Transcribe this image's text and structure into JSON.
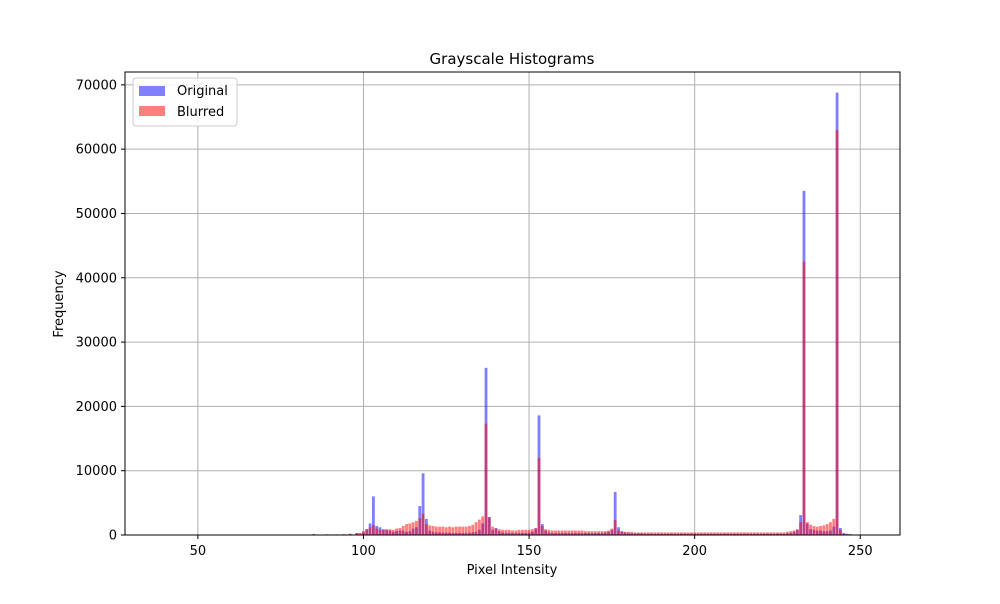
{
  "chart_data": {
    "type": "bar",
    "title": "Grayscale Histograms",
    "xlabel": "Pixel Intensity",
    "ylabel": "Frequency",
    "xlim": [
      28,
      262
    ],
    "ylim": [
      0,
      72000
    ],
    "xticks": [
      50,
      100,
      150,
      200,
      250
    ],
    "yticks": [
      0,
      10000,
      20000,
      30000,
      40000,
      50000,
      60000,
      70000
    ],
    "grid": true,
    "legend_position": "top-left",
    "colors": {
      "Original": "#7b7bf5",
      "Blurred": "#f37a7a",
      "overlap": "#b7407a"
    },
    "series": [
      {
        "name": "Original",
        "points": [
          [
            34,
            0
          ],
          [
            45,
            0
          ],
          [
            60,
            0
          ],
          [
            70,
            0
          ],
          [
            80,
            0
          ],
          [
            85,
            150
          ],
          [
            88,
            0
          ],
          [
            89,
            100
          ],
          [
            92,
            80
          ],
          [
            94,
            120
          ],
          [
            96,
            150
          ],
          [
            98,
            300
          ],
          [
            99,
            200
          ],
          [
            100,
            400
          ],
          [
            101,
            900
          ],
          [
            102,
            1800
          ],
          [
            103,
            6000
          ],
          [
            104,
            1400
          ],
          [
            105,
            1200
          ],
          [
            106,
            900
          ],
          [
            107,
            800
          ],
          [
            108,
            700
          ],
          [
            109,
            500
          ],
          [
            110,
            600
          ],
          [
            111,
            700
          ],
          [
            112,
            700
          ],
          [
            113,
            500
          ],
          [
            114,
            600
          ],
          [
            115,
            1000
          ],
          [
            116,
            1200
          ],
          [
            117,
            4500
          ],
          [
            118,
            9600
          ],
          [
            119,
            2500
          ],
          [
            120,
            700
          ],
          [
            121,
            500
          ],
          [
            122,
            400
          ],
          [
            123,
            400
          ],
          [
            124,
            350
          ],
          [
            125,
            350
          ],
          [
            126,
            350
          ],
          [
            127,
            300
          ],
          [
            128,
            300
          ],
          [
            129,
            300
          ],
          [
            130,
            300
          ],
          [
            131,
            300
          ],
          [
            132,
            350
          ],
          [
            133,
            400
          ],
          [
            134,
            500
          ],
          [
            135,
            800
          ],
          [
            136,
            1800
          ],
          [
            137,
            26000
          ],
          [
            138,
            2800
          ],
          [
            139,
            800
          ],
          [
            140,
            1100
          ],
          [
            141,
            600
          ],
          [
            142,
            400
          ],
          [
            143,
            350
          ],
          [
            144,
            350
          ],
          [
            145,
            300
          ],
          [
            146,
            300
          ],
          [
            147,
            300
          ],
          [
            148,
            300
          ],
          [
            149,
            300
          ],
          [
            150,
            350
          ],
          [
            151,
            500
          ],
          [
            152,
            1000
          ],
          [
            153,
            18600
          ],
          [
            154,
            1700
          ],
          [
            155,
            700
          ],
          [
            156,
            400
          ],
          [
            157,
            300
          ],
          [
            158,
            300
          ],
          [
            159,
            300
          ],
          [
            160,
            300
          ],
          [
            161,
            300
          ],
          [
            162,
            300
          ],
          [
            163,
            300
          ],
          [
            164,
            300
          ],
          [
            165,
            300
          ],
          [
            166,
            300
          ],
          [
            167,
            300
          ],
          [
            168,
            300
          ],
          [
            169,
            300
          ],
          [
            170,
            300
          ],
          [
            171,
            300
          ],
          [
            172,
            300
          ],
          [
            173,
            400
          ],
          [
            174,
            500
          ],
          [
            175,
            800
          ],
          [
            176,
            6700
          ],
          [
            177,
            1200
          ],
          [
            178,
            600
          ],
          [
            179,
            400
          ],
          [
            180,
            300
          ],
          [
            181,
            250
          ],
          [
            182,
            250
          ],
          [
            183,
            250
          ],
          [
            184,
            250
          ],
          [
            185,
            200
          ],
          [
            186,
            200
          ],
          [
            187,
            200
          ],
          [
            188,
            200
          ],
          [
            189,
            200
          ],
          [
            190,
            200
          ],
          [
            191,
            200
          ],
          [
            192,
            200
          ],
          [
            193,
            200
          ],
          [
            194,
            200
          ],
          [
            195,
            200
          ],
          [
            196,
            200
          ],
          [
            197,
            200
          ],
          [
            198,
            200
          ],
          [
            199,
            200
          ],
          [
            200,
            200
          ],
          [
            201,
            200
          ],
          [
            202,
            200
          ],
          [
            203,
            200
          ],
          [
            204,
            200
          ],
          [
            205,
            200
          ],
          [
            206,
            200
          ],
          [
            207,
            200
          ],
          [
            208,
            200
          ],
          [
            209,
            200
          ],
          [
            210,
            200
          ],
          [
            211,
            200
          ],
          [
            212,
            200
          ],
          [
            213,
            200
          ],
          [
            214,
            200
          ],
          [
            215,
            200
          ],
          [
            216,
            200
          ],
          [
            217,
            200
          ],
          [
            218,
            200
          ],
          [
            219,
            200
          ],
          [
            220,
            200
          ],
          [
            221,
            200
          ],
          [
            222,
            200
          ],
          [
            223,
            200
          ],
          [
            224,
            200
          ],
          [
            225,
            200
          ],
          [
            226,
            200
          ],
          [
            227,
            200
          ],
          [
            228,
            250
          ],
          [
            229,
            300
          ],
          [
            230,
            500
          ],
          [
            231,
            800
          ],
          [
            232,
            3100
          ],
          [
            233,
            53500
          ],
          [
            234,
            1800
          ],
          [
            235,
            900
          ],
          [
            236,
            800
          ],
          [
            237,
            700
          ],
          [
            238,
            700
          ],
          [
            239,
            600
          ],
          [
            240,
            600
          ],
          [
            241,
            700
          ],
          [
            242,
            1300
          ],
          [
            243,
            68800
          ],
          [
            244,
            1100
          ],
          [
            245,
            300
          ],
          [
            246,
            200
          ],
          [
            247,
            150
          ]
        ]
      },
      {
        "name": "Blurred",
        "points": [
          [
            85,
            100
          ],
          [
            89,
            100
          ],
          [
            92,
            100
          ],
          [
            94,
            100
          ],
          [
            96,
            200
          ],
          [
            98,
            300
          ],
          [
            99,
            300
          ],
          [
            100,
            600
          ],
          [
            101,
            900
          ],
          [
            102,
            1200
          ],
          [
            103,
            1500
          ],
          [
            104,
            1000
          ],
          [
            105,
            800
          ],
          [
            106,
            800
          ],
          [
            107,
            900
          ],
          [
            108,
            900
          ],
          [
            109,
            800
          ],
          [
            110,
            1000
          ],
          [
            111,
            1100
          ],
          [
            112,
            1400
          ],
          [
            113,
            1700
          ],
          [
            114,
            1800
          ],
          [
            115,
            2000
          ],
          [
            116,
            2200
          ],
          [
            117,
            2600
          ],
          [
            118,
            3300
          ],
          [
            119,
            1700
          ],
          [
            120,
            1500
          ],
          [
            121,
            1400
          ],
          [
            122,
            1300
          ],
          [
            123,
            1300
          ],
          [
            124,
            1300
          ],
          [
            125,
            1200
          ],
          [
            126,
            1300
          ],
          [
            127,
            1200
          ],
          [
            128,
            1300
          ],
          [
            129,
            1300
          ],
          [
            130,
            1300
          ],
          [
            131,
            1300
          ],
          [
            132,
            1400
          ],
          [
            133,
            1600
          ],
          [
            134,
            2000
          ],
          [
            135,
            2400
          ],
          [
            136,
            2900
          ],
          [
            137,
            17300
          ],
          [
            138,
            2700
          ],
          [
            139,
            1300
          ],
          [
            140,
            1000
          ],
          [
            141,
            900
          ],
          [
            142,
            800
          ],
          [
            143,
            800
          ],
          [
            144,
            800
          ],
          [
            145,
            700
          ],
          [
            146,
            700
          ],
          [
            147,
            800
          ],
          [
            148,
            800
          ],
          [
            149,
            800
          ],
          [
            150,
            800
          ],
          [
            151,
            900
          ],
          [
            152,
            1100
          ],
          [
            153,
            12000
          ],
          [
            154,
            1400
          ],
          [
            155,
            900
          ],
          [
            156,
            800
          ],
          [
            157,
            700
          ],
          [
            158,
            700
          ],
          [
            159,
            700
          ],
          [
            160,
            700
          ],
          [
            161,
            700
          ],
          [
            162,
            700
          ],
          [
            163,
            700
          ],
          [
            164,
            700
          ],
          [
            165,
            700
          ],
          [
            166,
            700
          ],
          [
            167,
            600
          ],
          [
            168,
            600
          ],
          [
            169,
            600
          ],
          [
            170,
            600
          ],
          [
            171,
            600
          ],
          [
            172,
            600
          ],
          [
            173,
            600
          ],
          [
            174,
            700
          ],
          [
            175,
            1000
          ],
          [
            176,
            2300
          ],
          [
            177,
            700
          ],
          [
            178,
            500
          ],
          [
            179,
            500
          ],
          [
            180,
            500
          ],
          [
            181,
            500
          ],
          [
            182,
            400
          ],
          [
            183,
            400
          ],
          [
            184,
            400
          ],
          [
            185,
            400
          ],
          [
            186,
            400
          ],
          [
            187,
            400
          ],
          [
            188,
            400
          ],
          [
            189,
            400
          ],
          [
            190,
            400
          ],
          [
            191,
            400
          ],
          [
            192,
            400
          ],
          [
            193,
            400
          ],
          [
            194,
            400
          ],
          [
            195,
            400
          ],
          [
            196,
            400
          ],
          [
            197,
            400
          ],
          [
            198,
            400
          ],
          [
            199,
            400
          ],
          [
            200,
            400
          ],
          [
            201,
            400
          ],
          [
            202,
            400
          ],
          [
            203,
            400
          ],
          [
            204,
            400
          ],
          [
            205,
            400
          ],
          [
            206,
            400
          ],
          [
            207,
            400
          ],
          [
            208,
            400
          ],
          [
            209,
            400
          ],
          [
            210,
            400
          ],
          [
            211,
            400
          ],
          [
            212,
            400
          ],
          [
            213,
            400
          ],
          [
            214,
            400
          ],
          [
            215,
            400
          ],
          [
            216,
            400
          ],
          [
            217,
            400
          ],
          [
            218,
            400
          ],
          [
            219,
            400
          ],
          [
            220,
            400
          ],
          [
            221,
            400
          ],
          [
            222,
            400
          ],
          [
            223,
            400
          ],
          [
            224,
            400
          ],
          [
            225,
            400
          ],
          [
            226,
            400
          ],
          [
            227,
            400
          ],
          [
            228,
            500
          ],
          [
            229,
            600
          ],
          [
            230,
            700
          ],
          [
            231,
            900
          ],
          [
            232,
            2000
          ],
          [
            233,
            42500
          ],
          [
            234,
            2000
          ],
          [
            235,
            1600
          ],
          [
            236,
            1400
          ],
          [
            237,
            1300
          ],
          [
            238,
            1400
          ],
          [
            239,
            1500
          ],
          [
            240,
            1700
          ],
          [
            241,
            2000
          ],
          [
            242,
            2500
          ],
          [
            243,
            63000
          ],
          [
            244,
            800
          ],
          [
            245,
            200
          ],
          [
            246,
            100
          ]
        ]
      }
    ]
  }
}
